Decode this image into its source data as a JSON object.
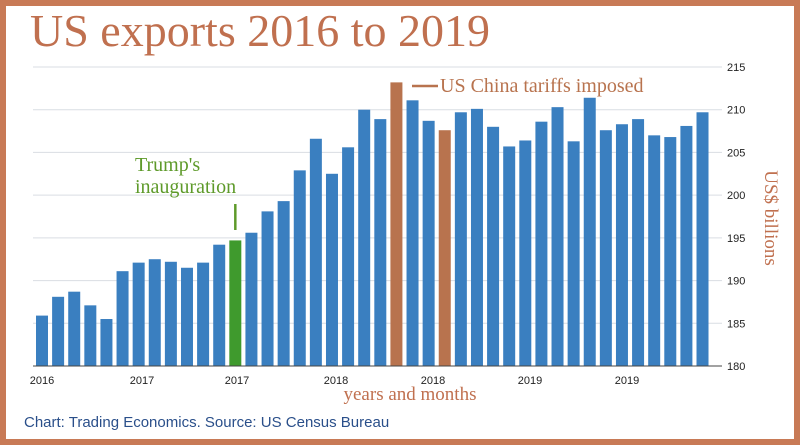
{
  "title": "US exports 2016 to 2019",
  "source": "Chart: Trading Economics. Source: US Census Bureau",
  "colors": {
    "bar": "#3a7fc0",
    "inauguration": "#3f9a2d",
    "tariff": "#b8734e",
    "title": "#c0704f",
    "green_text": "#5e9a2a"
  },
  "chart_data": {
    "type": "bar",
    "title": "US exports 2016 to 2019",
    "xlabel": "years and months",
    "ylabel": "US$ billions",
    "ylim": [
      180,
      215
    ],
    "yticks": [
      180,
      185,
      190,
      195,
      200,
      205,
      210,
      215
    ],
    "xtick_labels": [
      "2016",
      "2017",
      "2017",
      "2018",
      "2018",
      "2019",
      "2019"
    ],
    "values": [
      185.9,
      188.1,
      188.7,
      187.1,
      185.5,
      191.1,
      192.1,
      192.5,
      192.2,
      191.5,
      192.1,
      194.2,
      194.7,
      195.6,
      198.1,
      199.3,
      202.9,
      206.6,
      202.5,
      205.6,
      210.0,
      208.9,
      213.2,
      211.1,
      208.7,
      207.6,
      209.7,
      210.1,
      208.0,
      205.7,
      206.4,
      208.6,
      210.3,
      206.3,
      211.4,
      207.6,
      208.3,
      208.9,
      207.0,
      206.8,
      208.1,
      209.7
    ],
    "highlights": [
      {
        "index": 12,
        "color": "#3f9a2d"
      },
      {
        "index": 22,
        "color": "#b8734e"
      },
      {
        "index": 25,
        "color": "#b8734e"
      }
    ],
    "annotations": [
      {
        "text_lines": [
          "Trump's",
          "inauguration"
        ],
        "index": 12,
        "color": "#5e9a2a"
      },
      {
        "text": "US China tariffs imposed",
        "index": 22,
        "color": "#b8734e"
      }
    ],
    "grid": true
  }
}
